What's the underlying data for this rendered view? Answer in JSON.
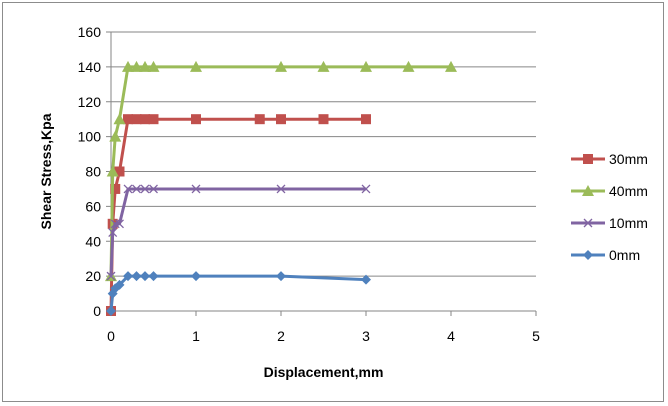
{
  "chart_data": {
    "type": "line",
    "title": "",
    "xlabel": "Displacement,mm",
    "ylabel": "Shear Stress,Kpa",
    "xlim": [
      0,
      5
    ],
    "ylim": [
      0,
      160
    ],
    "xticks": [
      0,
      1,
      2,
      3,
      4,
      5
    ],
    "yticks": [
      0,
      20,
      40,
      60,
      80,
      100,
      120,
      140,
      160
    ],
    "grid": "horizontal",
    "legend_position": "right",
    "series": [
      {
        "name": "30mm",
        "color": "#c0504d",
        "marker": "square",
        "x": [
          0,
          0.02,
          0.05,
          0.1,
          0.2,
          0.3,
          0.4,
          0.5,
          1,
          1.75,
          2,
          2.5,
          3
        ],
        "y": [
          0,
          50,
          70,
          80,
          110,
          110,
          110,
          110,
          110,
          110,
          110,
          110,
          110
        ]
      },
      {
        "name": "40mm",
        "color": "#9bbb59",
        "marker": "triangle",
        "x": [
          0,
          0.02,
          0.05,
          0.1,
          0.2,
          0.3,
          0.4,
          0.5,
          1,
          2,
          2.5,
          3,
          3.5,
          4
        ],
        "y": [
          20,
          80,
          100,
          110,
          140,
          140,
          140,
          140,
          140,
          140,
          140,
          140,
          140,
          140
        ]
      },
      {
        "name": "10mm",
        "color": "#8064a2",
        "marker": "x",
        "x": [
          0,
          0.02,
          0.05,
          0.1,
          0.2,
          0.3,
          0.4,
          0.5,
          1,
          2,
          3
        ],
        "y": [
          20,
          45,
          50,
          50,
          70,
          70,
          70,
          70,
          70,
          70,
          70
        ]
      },
      {
        "name": "0mm",
        "color": "#4f81bd",
        "marker": "diamond",
        "x": [
          0,
          0.02,
          0.05,
          0.1,
          0.2,
          0.3,
          0.4,
          0.5,
          1,
          2,
          3
        ],
        "y": [
          0,
          10,
          13,
          15,
          20,
          20,
          20,
          20,
          20,
          20,
          18
        ]
      }
    ]
  }
}
